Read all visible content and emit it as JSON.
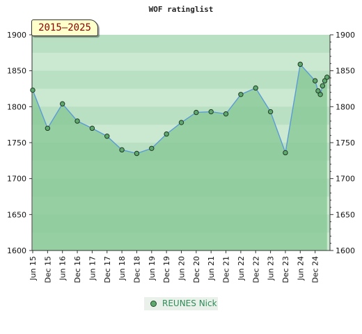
{
  "chart_data": {
    "type": "area",
    "title": "WOF ratinglist",
    "period_label": "2015–2025",
    "xlabel": "",
    "ylabel": "",
    "ylim": [
      1600,
      1900
    ],
    "y_ticks": [
      "1600",
      "1650",
      "1700",
      "1750",
      "1800",
      "1850",
      "1900"
    ],
    "x_ticks": [
      "Jun 15",
      "Dec 15",
      "Jun 16",
      "Dec 16",
      "Jun 17",
      "Dec 17",
      "Jun 18",
      "Dec 18",
      "Jun 19",
      "Dec 19",
      "Jun 20",
      "Dec 20",
      "Jun 21",
      "Dec 21",
      "Jun 22",
      "Dec 22",
      "Jun 23",
      "Dec 23",
      "Jun 24",
      "Dec 24"
    ],
    "x_range": [
      0,
      19.8
    ],
    "series": [
      {
        "name": "REUNES Nick",
        "x": [
          0,
          1,
          2,
          3,
          4,
          5,
          6,
          7,
          8,
          9,
          10,
          11,
          12,
          13,
          14,
          15,
          16,
          17,
          18,
          19,
          19.2,
          19.35,
          19.5,
          19.65,
          19.8
        ],
        "values": [
          1823,
          1770,
          1804,
          1780,
          1770,
          1759,
          1740,
          1735,
          1742,
          1762,
          1778,
          1792,
          1793,
          1790,
          1817,
          1826,
          1793,
          1736,
          1859,
          1836,
          1822,
          1817,
          1829,
          1836,
          1841
        ]
      }
    ],
    "grid": true,
    "legend_position": "bottom-center",
    "colors": {
      "line": "#5b9bd5",
      "area": "#86c895",
      "marker": "#5fa86f",
      "band_light": "#eaf6ec",
      "band_mid": "#b9e0c2",
      "band_dark": "#79c08a"
    }
  }
}
